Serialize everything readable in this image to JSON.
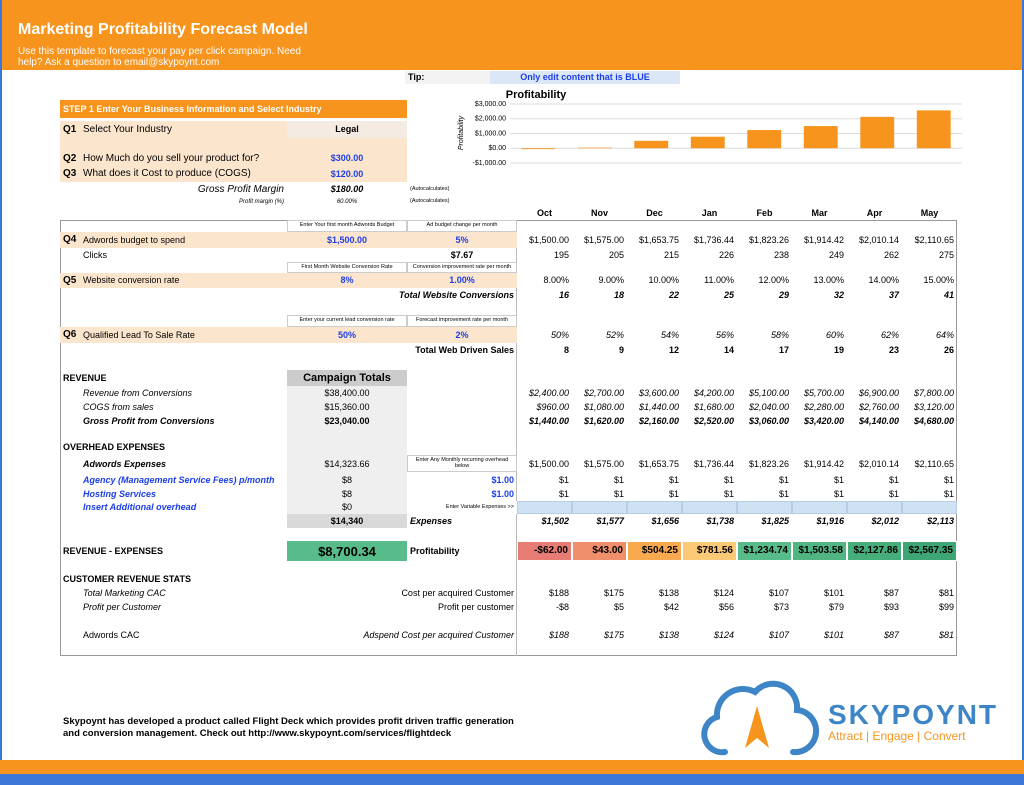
{
  "header": {
    "title": "Marketing Profitability Forecast Model",
    "subtitle": [
      "Use this template to forecast your pay per click campaign. Need",
      "help? Ask a question to email@skypoynt.com"
    ]
  },
  "tip": {
    "label": "Tip:",
    "text": "Only edit content that is BLUE"
  },
  "step1": {
    "title": "STEP 1 Enter Your Business Information and Select Industry",
    "q1": {
      "num": "Q1",
      "label": "Select Your Industry",
      "value": "Legal"
    },
    "q2": {
      "num": "Q2",
      "label": "How Much do you sell your product for?",
      "value": "$300.00"
    },
    "q3": {
      "num": "Q3",
      "label": "What does it Cost to produce (COGS)",
      "value": "$120.00"
    },
    "gross_margin": {
      "label": "Gross Profit Margin",
      "value": "$180.00",
      "note": "(Autocalculates)"
    },
    "profit_margin": {
      "label": "Profit margin (%)",
      "value": "60.00%",
      "note": "(Autocalculates)"
    }
  },
  "chart": {
    "type": "bar",
    "title": "Profitability",
    "y_label": "Profitability",
    "values": [
      -62,
      43,
      504.25,
      781.56,
      1234.74,
      1503.58,
      2127.86,
      2567.35
    ],
    "color": "#f6941d",
    "ylim": [
      -1000,
      3000
    ],
    "yticks": [
      {
        "value": 3000,
        "label": "$3,000.00"
      },
      {
        "value": 2000,
        "label": "$2,000.00"
      },
      {
        "value": 1000,
        "label": "$1,000.00"
      },
      {
        "value": 0,
        "label": "$0.00"
      },
      {
        "value": -1000,
        "label": "-$1,000.00"
      }
    ],
    "grid": true
  },
  "months": [
    "Oct",
    "Nov",
    "Dec",
    "Jan",
    "Feb",
    "Mar",
    "Apr",
    "May"
  ],
  "forecast": {
    "q4": {
      "num": "Q4",
      "label": "Adwords budget to spend",
      "note1": "Enter Your first month Adwords Budget",
      "note2": "Ad budget change per month",
      "value1": "$1,500.00",
      "value2": "5%",
      "months": [
        "$1,500.00",
        "$1,575.00",
        "$1,653.75",
        "$1,736.44",
        "$1,823.26",
        "$1,914.42",
        "$2,010.14",
        "$2,110.65"
      ]
    },
    "clicks": {
      "label": "Clicks",
      "value2": "$7.67",
      "months": [
        "195",
        "205",
        "215",
        "226",
        "238",
        "249",
        "262",
        "275"
      ]
    },
    "q5": {
      "num": "Q5",
      "label": "Website conversion rate",
      "note1": "First Month Website Conversion Rate",
      "note2": "Conversion improvement rate per month",
      "value1": "8%",
      "value2": "1.00%",
      "months": [
        "8.00%",
        "9.00%",
        "10.00%",
        "11.00%",
        "12.00%",
        "13.00%",
        "14.00%",
        "15.00%"
      ]
    },
    "conversions": {
      "label": "Total Website Conversions",
      "months": [
        "16",
        "18",
        "22",
        "25",
        "29",
        "32",
        "37",
        "41"
      ]
    },
    "q6": {
      "num": "Q6",
      "label": "Qualified Lead To Sale Rate",
      "note1": "Enter your current lead conversion rate",
      "note2": "Forecast improvement rate per month",
      "value1": "50%",
      "value2": "2%",
      "months": [
        "50%",
        "52%",
        "54%",
        "56%",
        "58%",
        "60%",
        "62%",
        "64%"
      ]
    },
    "sales": {
      "label": "Total Web Driven Sales",
      "months": [
        "8",
        "9",
        "12",
        "14",
        "17",
        "19",
        "23",
        "26"
      ]
    }
  },
  "revenue": {
    "title": "REVENUE",
    "totals_header": "Campaign Totals",
    "rows": [
      {
        "label": "Revenue from Conversions",
        "total": "$38,400.00",
        "months": [
          "$2,400.00",
          "$2,700.00",
          "$3,600.00",
          "$4,200.00",
          "$5,100.00",
          "$5,700.00",
          "$6,900.00",
          "$7,800.00"
        ]
      },
      {
        "label": "COGS from sales",
        "total": "$15,360.00",
        "months": [
          "$960.00",
          "$1,080.00",
          "$1,440.00",
          "$1,680.00",
          "$2,040.00",
          "$2,280.00",
          "$2,760.00",
          "$3,120.00"
        ]
      },
      {
        "label": "Gross Profit from Conversions",
        "total": "$23,040.00",
        "months": [
          "$1,440.00",
          "$1,620.00",
          "$2,160.00",
          "$2,520.00",
          "$3,060.00",
          "$3,420.00",
          "$4,140.00",
          "$4,680.00"
        ]
      }
    ]
  },
  "overhead": {
    "title": "OVERHEAD EXPENSES",
    "note": "Enter Any Monthly recurring overhead below",
    "variable_note": "Enter Variable Expenses >>",
    "rows": [
      {
        "label": "Adwords Expenses",
        "total": "$14,323.66",
        "months": [
          "$1,500.00",
          "$1,575.00",
          "$1,653.75",
          "$1,736.44",
          "$1,823.26",
          "$1,914.42",
          "$2,010.14",
          "$2,110.65"
        ]
      },
      {
        "label": "Agency (Management Service Fees) p/month",
        "total": "$8",
        "rate": "$1.00",
        "months": [
          "$1",
          "$1",
          "$1",
          "$1",
          "$1",
          "$1",
          "$1",
          "$1"
        ]
      },
      {
        "label": "Hosting Services",
        "total": "$8",
        "rate": "$1.00",
        "months": [
          "$1",
          "$1",
          "$1",
          "$1",
          "$1",
          "$1",
          "$1",
          "$1"
        ]
      },
      {
        "label": "Insert Additional overhead",
        "total": "$0"
      }
    ],
    "total": "$14,340",
    "total_label": "Expenses",
    "total_months": [
      "$1,502",
      "$1,577",
      "$1,656",
      "$1,738",
      "$1,825",
      "$1,916",
      "$2,012",
      "$2,113"
    ]
  },
  "result": {
    "label": "REVENUE - EXPENSES",
    "total": "$8,700.34",
    "label2": "Profitability",
    "months": [
      "-$62.00",
      "$43.00",
      "$504.25",
      "$781.56",
      "$1,234.74",
      "$1,503.58",
      "$2,127.86",
      "$2,567.35"
    ]
  },
  "stats": {
    "title": "CUSTOMER REVENUE STATS",
    "rows": [
      {
        "label": "Total Marketing CAC",
        "desc": "Cost per acquired Customer",
        "months": [
          "$188",
          "$175",
          "$138",
          "$124",
          "$107",
          "$101",
          "$87",
          "$81"
        ]
      },
      {
        "label": "Profit per Customer",
        "desc": "Profit per customer",
        "months": [
          "-$8",
          "$5",
          "$42",
          "$56",
          "$73",
          "$79",
          "$93",
          "$99"
        ]
      },
      {
        "label": "Adwords CAC",
        "desc": "Adspend Cost per acquired Customer",
        "months": [
          "$188",
          "$175",
          "$138",
          "$124",
          "$107",
          "$101",
          "$87",
          "$81"
        ]
      }
    ]
  },
  "footer": {
    "text": [
      "Skypoynt has developed a product called Flight Deck which provides profit driven traffic generation",
      "and conversion management. Check out http://www.skypoynt.com/services/flightdeck"
    ],
    "logo": {
      "name": "SKYPOYNT",
      "tagline": "Attract | Engage | Convert"
    }
  }
}
